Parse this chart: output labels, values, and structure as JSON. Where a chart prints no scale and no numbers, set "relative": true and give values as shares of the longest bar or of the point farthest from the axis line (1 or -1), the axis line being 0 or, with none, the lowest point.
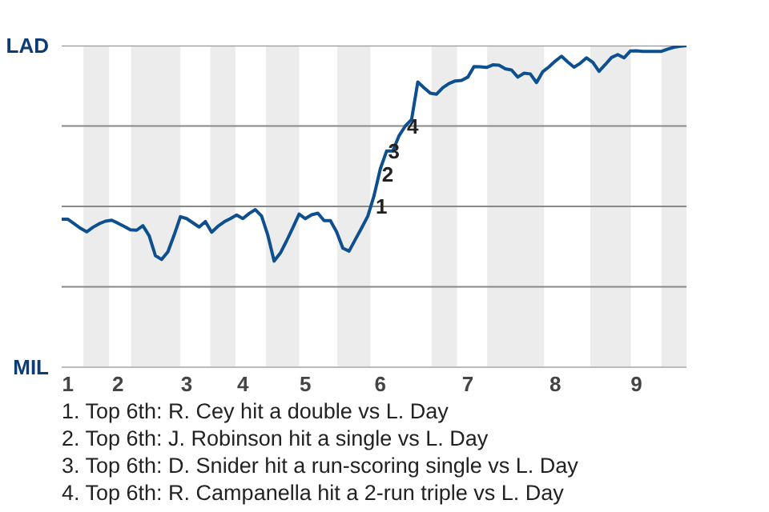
{
  "chart_data": {
    "type": "line",
    "relative": true,
    "categories": [
      null,
      "1",
      null,
      null,
      null,
      null,
      null,
      null,
      null,
      "2",
      null,
      null,
      null,
      null,
      null,
      null,
      null,
      null,
      null,
      null,
      "3",
      null,
      null,
      null,
      null,
      null,
      null,
      null,
      null,
      "4",
      null,
      null,
      null,
      null,
      null,
      null,
      null,
      null,
      null,
      "5",
      null,
      null,
      null,
      null,
      null,
      null,
      null,
      null,
      null,
      null,
      null,
      "6",
      null,
      null,
      null,
      null,
      null,
      null,
      null,
      null,
      null,
      null,
      null,
      null,
      null,
      "7",
      null,
      null,
      null,
      null,
      null,
      null,
      null,
      null,
      null,
      null,
      null,
      null,
      null,
      "8",
      null,
      null,
      null,
      null,
      null,
      null,
      null,
      null,
      null,
      null,
      null,
      null,
      "9",
      null,
      null,
      null,
      null,
      null,
      null,
      null,
      null
    ],
    "series": [
      {
        "color": "#0d4f8f",
        "values": [
          0.46,
          0.46,
          0.446,
          0.432,
          0.421,
          0.435,
          0.446,
          0.454,
          0.457,
          0.448,
          0.438,
          0.427,
          0.426,
          0.44,
          0.409,
          0.347,
          0.335,
          0.359,
          0.411,
          0.468,
          0.462,
          0.449,
          0.436,
          0.453,
          0.42,
          0.438,
          0.452,
          0.462,
          0.473,
          0.462,
          0.478,
          0.49,
          0.47,
          0.41,
          0.33,
          0.355,
          0.393,
          0.434,
          0.476,
          0.462,
          0.474,
          0.479,
          0.456,
          0.456,
          0.421,
          0.37,
          0.361,
          0.397,
          0.433,
          0.47,
          0.534,
          0.617,
          0.672,
          0.672,
          0.72,
          0.75,
          0.77,
          0.887,
          0.869,
          0.852,
          0.849,
          0.869,
          0.882,
          0.89,
          0.892,
          0.902,
          0.935,
          0.934,
          0.932,
          0.94,
          0.939,
          0.928,
          0.924,
          0.902,
          0.914,
          0.912,
          0.885,
          0.919,
          0.934,
          0.952,
          0.967,
          0.949,
          0.933,
          0.945,
          0.962,
          0.948,
          0.92,
          0.941,
          0.963,
          0.972,
          0.962,
          0.983,
          0.984,
          0.982,
          0.982,
          0.982,
          0.982,
          0.989,
          0.995,
          0.998,
          1.0
        ]
      }
    ],
    "marker": "none",
    "line_style": "solid",
    "ref_lines": [
      {
        "axis": "y",
        "value": 0.25,
        "label": null,
        "color": "#888888"
      },
      {
        "axis": "y",
        "value": 0.5,
        "label": null,
        "color": "#888888"
      },
      {
        "axis": "y",
        "value": 0.75,
        "label": null,
        "color": "#888888"
      },
      {
        "axis": "y",
        "value": 1.0,
        "label": null,
        "color": "#888888"
      }
    ],
    "annotations": [
      "LAD",
      "MIL",
      {
        "text": "1",
        "y": 0.5
      },
      {
        "text": "2",
        "y": 0.6
      },
      {
        "text": "3",
        "y": 0.672
      },
      {
        "text": "4",
        "y": 0.75
      },
      "1. Top 6th: R. Cey hit a double vs L. Day",
      "2. Top 6th: J. Robinson hit a single vs L. Day",
      "3. Top 6th: D. Snider hit a run-scoring single vs L. Day",
      "4. Top 6th: R. Campanella hit a 2-run triple vs L. Day"
    ]
  }
}
